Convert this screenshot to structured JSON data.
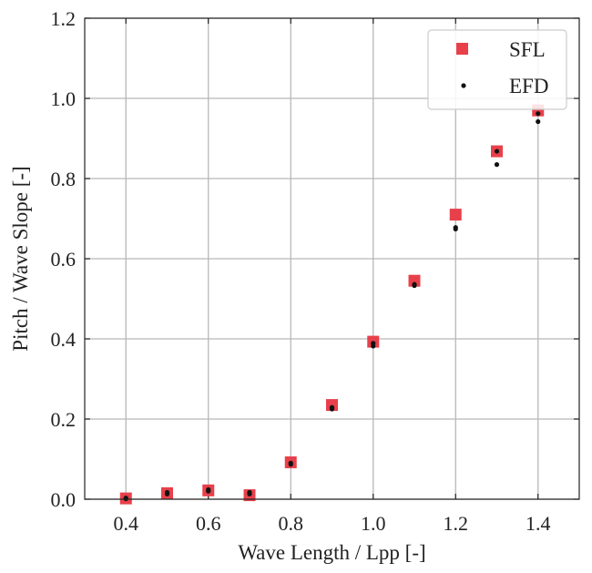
{
  "chart_data": {
    "type": "scatter",
    "xlabel": "Wave Length / Lpp [-]",
    "ylabel": "Pitch / Wave Slope [-]",
    "xlim": [
      0.3,
      1.5
    ],
    "ylim": [
      0.0,
      1.2
    ],
    "xticks": [
      "0.4",
      "0.6",
      "0.8",
      "1.0",
      "1.2",
      "1.4"
    ],
    "yticks": [
      "0.0",
      "0.2",
      "0.4",
      "0.6",
      "0.8",
      "1.0",
      "1.2"
    ],
    "grid": true,
    "legend_position": "top-right",
    "series": [
      {
        "name": "SFL",
        "marker": "square",
        "color": "#e8404a",
        "points": [
          {
            "x": 0.4,
            "y": 0.002
          },
          {
            "x": 0.5,
            "y": 0.015
          },
          {
            "x": 0.6,
            "y": 0.022
          },
          {
            "x": 0.7,
            "y": 0.01
          },
          {
            "x": 0.8,
            "y": 0.092
          },
          {
            "x": 0.9,
            "y": 0.235
          },
          {
            "x": 1.0,
            "y": 0.393
          },
          {
            "x": 1.1,
            "y": 0.545
          },
          {
            "x": 1.2,
            "y": 0.71
          },
          {
            "x": 1.3,
            "y": 0.868
          },
          {
            "x": 1.4,
            "y": 0.97
          }
        ]
      },
      {
        "name": "EFD",
        "marker": "dot",
        "color": "#111111",
        "points": [
          {
            "x": 0.4,
            "y": 0.003
          },
          {
            "x": 0.4,
            "y": 0.001
          },
          {
            "x": 0.5,
            "y": 0.013
          },
          {
            "x": 0.5,
            "y": 0.017
          },
          {
            "x": 0.6,
            "y": 0.02
          },
          {
            "x": 0.6,
            "y": 0.024
          },
          {
            "x": 0.7,
            "y": 0.013
          },
          {
            "x": 0.7,
            "y": 0.017
          },
          {
            "x": 0.8,
            "y": 0.087
          },
          {
            "x": 0.8,
            "y": 0.09
          },
          {
            "x": 0.9,
            "y": 0.225
          },
          {
            "x": 0.9,
            "y": 0.229
          },
          {
            "x": 1.0,
            "y": 0.382
          },
          {
            "x": 1.0,
            "y": 0.389
          },
          {
            "x": 1.1,
            "y": 0.533
          },
          {
            "x": 1.1,
            "y": 0.536
          },
          {
            "x": 1.2,
            "y": 0.674
          },
          {
            "x": 1.2,
            "y": 0.678
          },
          {
            "x": 1.3,
            "y": 0.835
          },
          {
            "x": 1.3,
            "y": 0.868
          },
          {
            "x": 1.4,
            "y": 0.942
          },
          {
            "x": 1.4,
            "y": 0.962
          }
        ]
      }
    ]
  }
}
